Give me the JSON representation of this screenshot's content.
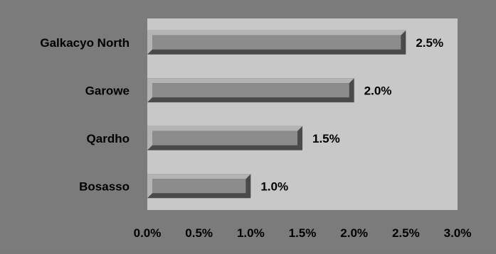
{
  "chart_data": {
    "type": "bar",
    "orientation": "horizontal",
    "categories": [
      "Galkacyo North",
      "Garowe",
      "Qardho",
      "Bosasso"
    ],
    "values": [
      2.5,
      2.0,
      1.5,
      1.0
    ],
    "value_labels": [
      "2.5%",
      "2.0%",
      "1.5%",
      "1.0%"
    ],
    "xlim": [
      0,
      3.0
    ],
    "x_ticks": [
      0,
      0.5,
      1.0,
      1.5,
      2.0,
      2.5,
      3.0
    ],
    "x_tick_labels": [
      "0.0%",
      "0.5%",
      "1.0%",
      "1.5%",
      "2.0%",
      "2.5%",
      "3.0%"
    ],
    "title": "",
    "xlabel": "",
    "ylabel": "",
    "grid": false,
    "legend": "none",
    "colors": {
      "chart_background": "#7b7b7b",
      "plot_background": "#c8c8c8",
      "bar_fill": "#8c8c8c",
      "bar_highlight": "#b4b4b4",
      "bar_shadow": "#4a4a4a"
    }
  }
}
